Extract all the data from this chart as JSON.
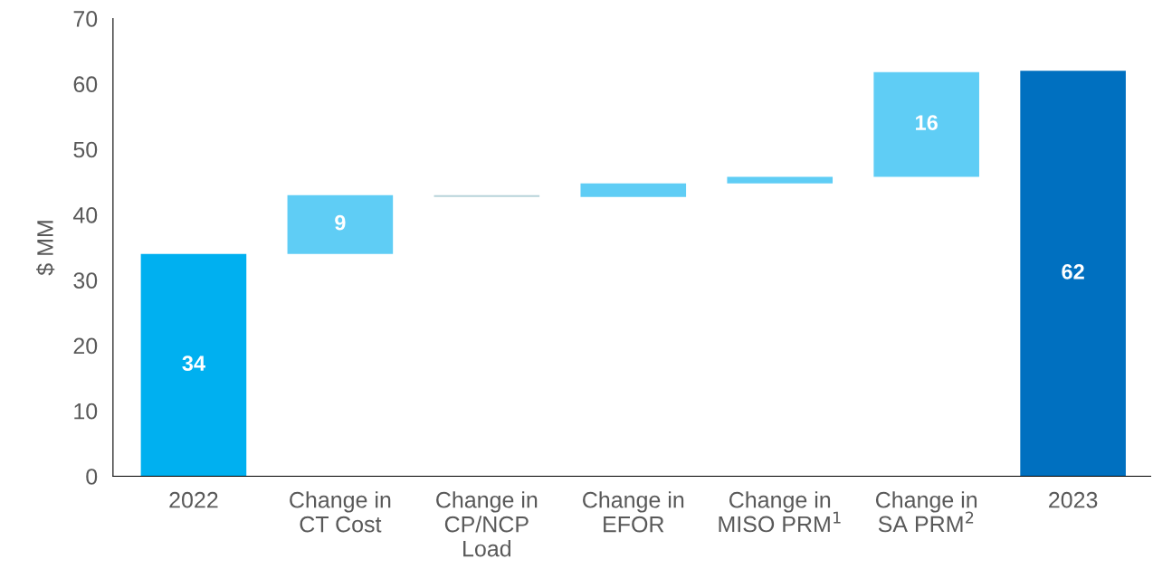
{
  "chart_data": {
    "type": "bar",
    "ylabel": "$ MM",
    "categories": [
      "2022",
      "Change in\nCT Cost",
      "Change in\nCP/NCP\nLoad",
      "Change in\nEFOR",
      "Change in\nMISO PRM$^{1}$",
      "Change in\nSA PRM$^{2}$",
      "2023"
    ],
    "values": [
      34,
      9,
      0.3,
      2.1,
      1.0,
      16,
      62
    ],
    "base": [
      0,
      34,
      42.7,
      42.7,
      44.8,
      45.8,
      0
    ],
    "colors": [
      "#00b0f0",
      "#5fcdf5",
      "#b7d3d9",
      "#5fcdf5",
      "#5fcdf5",
      "#5fcdf5",
      "#0070c0"
    ],
    "value_labels": [
      "34",
      "9",
      null,
      null,
      null,
      "16",
      "62"
    ],
    "ylim": [
      0,
      70
    ],
    "yticks": [
      0,
      10,
      20,
      30,
      40,
      50,
      60,
      70
    ],
    "grid": false
  }
}
